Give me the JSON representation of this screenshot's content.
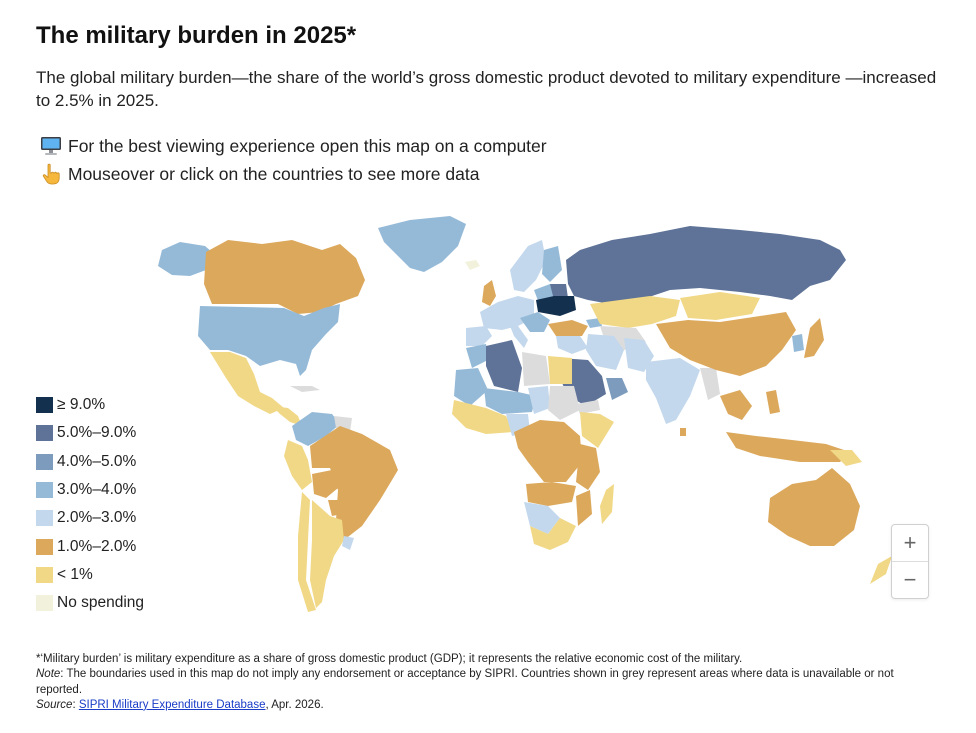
{
  "header": {
    "title": "The military burden in 2025*",
    "subtitle": "The global military burden—the share of the world’s gross domestic product devoted to military expenditure —increased to 2.5% in 2025."
  },
  "tips": [
    {
      "icon": "desktop-computer-icon",
      "text": "For the best viewing experience open this map on a computer"
    },
    {
      "icon": "pointing-hand-icon",
      "text": "Mouseover or click on the countries to see more data"
    }
  ],
  "legend": [
    {
      "label": "≥ 9.0%",
      "color": "#14304f"
    },
    {
      "label": "5.0%–9.0%",
      "color": "#5e7397"
    },
    {
      "label": "4.0%–5.0%",
      "color": "#7d9bbd"
    },
    {
      "label": "3.0%–4.0%",
      "color": "#95bad8"
    },
    {
      "label": "2.0%–3.0%",
      "color": "#c3d8ec"
    },
    {
      "label": "1.0%–2.0%",
      "color": "#dba85c"
    },
    {
      "label": "< 1%",
      "color": "#f1d886"
    },
    {
      "label": "No spending",
      "color": "#f1f1dc"
    }
  ],
  "colors": {
    "no_data": "#dcdcdc",
    "band_ge_9": "#14304f",
    "band_5_9": "#5e7397",
    "band_4_5": "#7d9bbd",
    "band_3_4": "#95bad8",
    "band_2_3": "#c3d8ec",
    "band_1_2": "#dba85c",
    "band_lt_1": "#f1d886"
  },
  "zoom": {
    "in_label": "+",
    "out_label": "−"
  },
  "footer": {
    "definition": "*‘Military burden’ is military expenditure as a share of gross domestic product (GDP); it represents the relative economic cost of the military.",
    "note_label": "Note",
    "note_text": ": The boundaries used in this map do not imply any endorsement or acceptance by SIPRI. Countries shown in grey represent areas where data is unavailable or not reported.",
    "source_label": "Source",
    "source_sep": ": ",
    "source_link": "SIPRI Military Expenditure Database",
    "source_date": ", Apr. 2026."
  }
}
